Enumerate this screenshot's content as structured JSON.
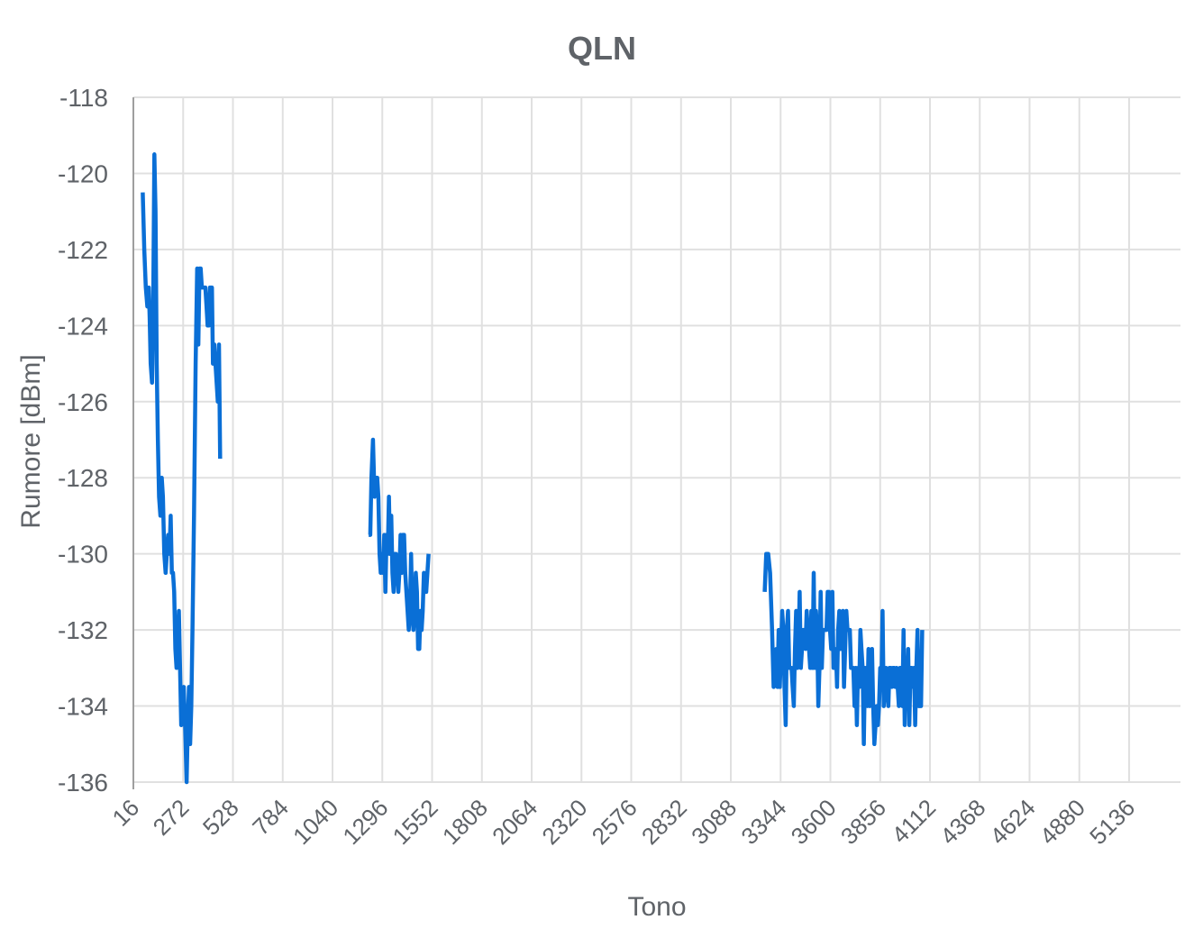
{
  "chart_data": {
    "type": "line",
    "title": "QLN",
    "xlabel": "Tono",
    "ylabel": "Rumore [dBm]",
    "xlim": [
      16,
      5400
    ],
    "ylim": [
      -136,
      -118
    ],
    "y_ticks": [
      -118,
      -120,
      -122,
      -124,
      -126,
      -128,
      -130,
      -132,
      -134,
      -136
    ],
    "x_ticks": [
      16,
      272,
      528,
      784,
      1040,
      1296,
      1552,
      1808,
      2064,
      2320,
      2576,
      2832,
      3088,
      3344,
      3600,
      3856,
      4112,
      4368,
      4624,
      4880,
      5136
    ],
    "grid": true,
    "colors": {
      "series": "#0a6fd6",
      "grid": "#e0e0e0",
      "text": "#5f6368"
    },
    "series": [
      {
        "segments": [
          [
            [
              64,
              -120.5
            ],
            [
              72,
              -122
            ],
            [
              80,
              -123
            ],
            [
              88,
              -123.5
            ],
            [
              95,
              -123
            ],
            [
              100,
              -123.8
            ],
            [
              105,
              -125
            ],
            [
              112,
              -125.5
            ],
            [
              118,
              -123.5
            ],
            [
              124,
              -119.5
            ],
            [
              130,
              -121
            ],
            [
              136,
              -125
            ],
            [
              142,
              -127
            ],
            [
              148,
              -128.5
            ],
            [
              155,
              -129
            ],
            [
              162,
              -128
            ],
            [
              168,
              -128.5
            ],
            [
              175,
              -130
            ],
            [
              182,
              -130.5
            ],
            [
              188,
              -130
            ],
            [
              195,
              -129.5
            ],
            [
              202,
              -130
            ],
            [
              208,
              -129
            ],
            [
              214,
              -130.5
            ],
            [
              220,
              -130.5
            ],
            [
              226,
              -131
            ],
            [
              232,
              -132.5
            ],
            [
              238,
              -133
            ],
            [
              244,
              -132.5
            ],
            [
              250,
              -131.5
            ],
            [
              256,
              -133
            ],
            [
              262,
              -134.5
            ],
            [
              268,
              -134
            ],
            [
              275,
              -133.5
            ],
            [
              282,
              -134.5
            ],
            [
              290,
              -136
            ],
            [
              296,
              -134.5
            ],
            [
              302,
              -133.5
            ],
            [
              308,
              -135
            ],
            [
              314,
              -134
            ],
            [
              320,
              -132
            ],
            [
              328,
              -129
            ],
            [
              336,
              -125
            ],
            [
              344,
              -122.5
            ],
            [
              350,
              -124.5
            ],
            [
              356,
              -122.5
            ],
            [
              362,
              -122.5
            ],
            [
              368,
              -123
            ],
            [
              374,
              -123
            ],
            [
              380,
              -123
            ],
            [
              386,
              -123
            ],
            [
              392,
              -123.5
            ],
            [
              398,
              -124
            ],
            [
              404,
              -124
            ],
            [
              410,
              -123
            ],
            [
              416,
              -123
            ],
            [
              420,
              -123
            ],
            [
              425,
              -125
            ],
            [
              432,
              -124.5
            ],
            [
              438,
              -125
            ],
            [
              444,
              -125.5
            ],
            [
              450,
              -126
            ],
            [
              456,
              -124.5
            ],
            [
              462,
              -127.5
            ]
          ],
          [
            [
              1226,
              -129.5
            ],
            [
              1234,
              -129.5
            ],
            [
              1240,
              -128
            ],
            [
              1248,
              -127
            ],
            [
              1256,
              -128.5
            ],
            [
              1262,
              -128
            ],
            [
              1270,
              -128
            ],
            [
              1276,
              -128.5
            ],
            [
              1282,
              -130
            ],
            [
              1288,
              -130.5
            ],
            [
              1294,
              -130
            ],
            [
              1300,
              -130.5
            ],
            [
              1306,
              -129.5
            ],
            [
              1312,
              -131
            ],
            [
              1318,
              -129.5
            ],
            [
              1324,
              -130
            ],
            [
              1330,
              -128.5
            ],
            [
              1336,
              -130
            ],
            [
              1342,
              -129
            ],
            [
              1348,
              -130.5
            ],
            [
              1354,
              -131
            ],
            [
              1360,
              -130
            ],
            [
              1366,
              -130
            ],
            [
              1372,
              -130.5
            ],
            [
              1378,
              -131
            ],
            [
              1384,
              -130.5
            ],
            [
              1390,
              -129.5
            ],
            [
              1396,
              -130.5
            ],
            [
              1402,
              -129.5
            ],
            [
              1408,
              -129.5
            ],
            [
              1414,
              -130.5
            ],
            [
              1420,
              -131
            ],
            [
              1426,
              -131.5
            ],
            [
              1432,
              -132
            ],
            [
              1438,
              -131.5
            ],
            [
              1444,
              -130
            ],
            [
              1450,
              -131.5
            ],
            [
              1456,
              -132
            ],
            [
              1462,
              -131.5
            ],
            [
              1468,
              -130.5
            ],
            [
              1474,
              -131
            ],
            [
              1480,
              -132.5
            ],
            [
              1486,
              -132.5
            ],
            [
              1492,
              -131.5
            ],
            [
              1498,
              -132
            ],
            [
              1504,
              -131.5
            ],
            [
              1510,
              -130.5
            ],
            [
              1516,
              -131
            ],
            [
              1522,
              -131
            ],
            [
              1528,
              -130.5
            ],
            [
              1534,
              -130
            ]
          ],
          [
            [
              3262,
              -131
            ],
            [
              3270,
              -130
            ],
            [
              3280,
              -130
            ],
            [
              3290,
              -130.5
            ],
            [
              3300,
              -132
            ],
            [
              3308,
              -133.5
            ],
            [
              3316,
              -133
            ],
            [
              3322,
              -132.5
            ],
            [
              3328,
              -133.5
            ],
            [
              3334,
              -132
            ],
            [
              3340,
              -133.5
            ],
            [
              3346,
              -132.5
            ],
            [
              3352,
              -131.5
            ],
            [
              3358,
              -132
            ],
            [
              3364,
              -133.5
            ],
            [
              3370,
              -134.5
            ],
            [
              3376,
              -132
            ],
            [
              3382,
              -131.5
            ],
            [
              3388,
              -133
            ],
            [
              3394,
              -133
            ],
            [
              3400,
              -133
            ],
            [
              3406,
              -133.5
            ],
            [
              3412,
              -134
            ],
            [
              3418,
              -132.5
            ],
            [
              3424,
              -131.5
            ],
            [
              3430,
              -133
            ],
            [
              3436,
              -132.5
            ],
            [
              3442,
              -131
            ],
            [
              3448,
              -133
            ],
            [
              3454,
              -132.5
            ],
            [
              3460,
              -132
            ],
            [
              3466,
              -132
            ],
            [
              3472,
              -132.5
            ],
            [
              3478,
              -131.5
            ],
            [
              3484,
              -132
            ],
            [
              3490,
              -132.5
            ],
            [
              3496,
              -133
            ],
            [
              3502,
              -131.5
            ],
            [
              3508,
              -133
            ],
            [
              3514,
              -130.5
            ],
            [
              3520,
              -133
            ],
            [
              3526,
              -131.5
            ],
            [
              3532,
              -132
            ],
            [
              3538,
              -134
            ],
            [
              3544,
              -133
            ],
            [
              3550,
              -131
            ],
            [
              3556,
              -133
            ],
            [
              3562,
              -132
            ],
            [
              3568,
              -132
            ],
            [
              3574,
              -132
            ],
            [
              3580,
              -132
            ],
            [
              3586,
              -131
            ],
            [
              3592,
              -131
            ],
            [
              3598,
              -132
            ],
            [
              3604,
              -132.5
            ],
            [
              3610,
              -131
            ],
            [
              3616,
              -133
            ],
            [
              3622,
              -133
            ],
            [
              3628,
              -132.5
            ],
            [
              3634,
              -133.5
            ],
            [
              3640,
              -132
            ],
            [
              3646,
              -131.5
            ],
            [
              3652,
              -132.5
            ],
            [
              3658,
              -132
            ],
            [
              3664,
              -131.5
            ],
            [
              3670,
              -133.5
            ],
            [
              3676,
              -132.5
            ],
            [
              3682,
              -131.5
            ],
            [
              3688,
              -132
            ],
            [
              3694,
              -132
            ],
            [
              3700,
              -132
            ],
            [
              3706,
              -133
            ],
            [
              3712,
              -133
            ],
            [
              3718,
              -133
            ],
            [
              3724,
              -134
            ],
            [
              3730,
              -133
            ],
            [
              3736,
              -134.5
            ],
            [
              3742,
              -133
            ],
            [
              3748,
              -133.5
            ],
            [
              3754,
              -132
            ],
            [
              3760,
              -132.5
            ],
            [
              3766,
              -133
            ],
            [
              3772,
              -135
            ],
            [
              3778,
              -133
            ],
            [
              3784,
              -133.5
            ],
            [
              3790,
              -134
            ],
            [
              3796,
              -132.5
            ],
            [
              3802,
              -134
            ],
            [
              3808,
              -133.5
            ],
            [
              3814,
              -132.5
            ],
            [
              3820,
              -134
            ],
            [
              3826,
              -135
            ],
            [
              3832,
              -134.5
            ],
            [
              3838,
              -134
            ],
            [
              3844,
              -134.5
            ],
            [
              3850,
              -134
            ],
            [
              3856,
              -133
            ],
            [
              3862,
              -133.5
            ],
            [
              3868,
              -131.5
            ],
            [
              3874,
              -134
            ],
            [
              3880,
              -133.5
            ],
            [
              3886,
              -133
            ],
            [
              3892,
              -133.5
            ],
            [
              3898,
              -134
            ],
            [
              3904,
              -133
            ],
            [
              3910,
              -133
            ],
            [
              3916,
              -133.5
            ],
            [
              3922,
              -133
            ],
            [
              3928,
              -133
            ],
            [
              3934,
              -133.5
            ],
            [
              3940,
              -133
            ],
            [
              3946,
              -133.5
            ],
            [
              3952,
              -134
            ],
            [
              3958,
              -133
            ],
            [
              3964,
              -133
            ],
            [
              3970,
              -134
            ],
            [
              3976,
              -132
            ],
            [
              3982,
              -134.5
            ],
            [
              3988,
              -133
            ],
            [
              3994,
              -133.5
            ],
            [
              4000,
              -132.5
            ],
            [
              4006,
              -134.5
            ],
            [
              4012,
              -133
            ],
            [
              4018,
              -133
            ],
            [
              4024,
              -133.5
            ],
            [
              4030,
              -133
            ],
            [
              4036,
              -134.5
            ],
            [
              4042,
              -133
            ],
            [
              4048,
              -132
            ],
            [
              4054,
              -134
            ],
            [
              4060,
              -134
            ],
            [
              4066,
              -134
            ],
            [
              4072,
              -132
            ]
          ]
        ]
      }
    ]
  }
}
